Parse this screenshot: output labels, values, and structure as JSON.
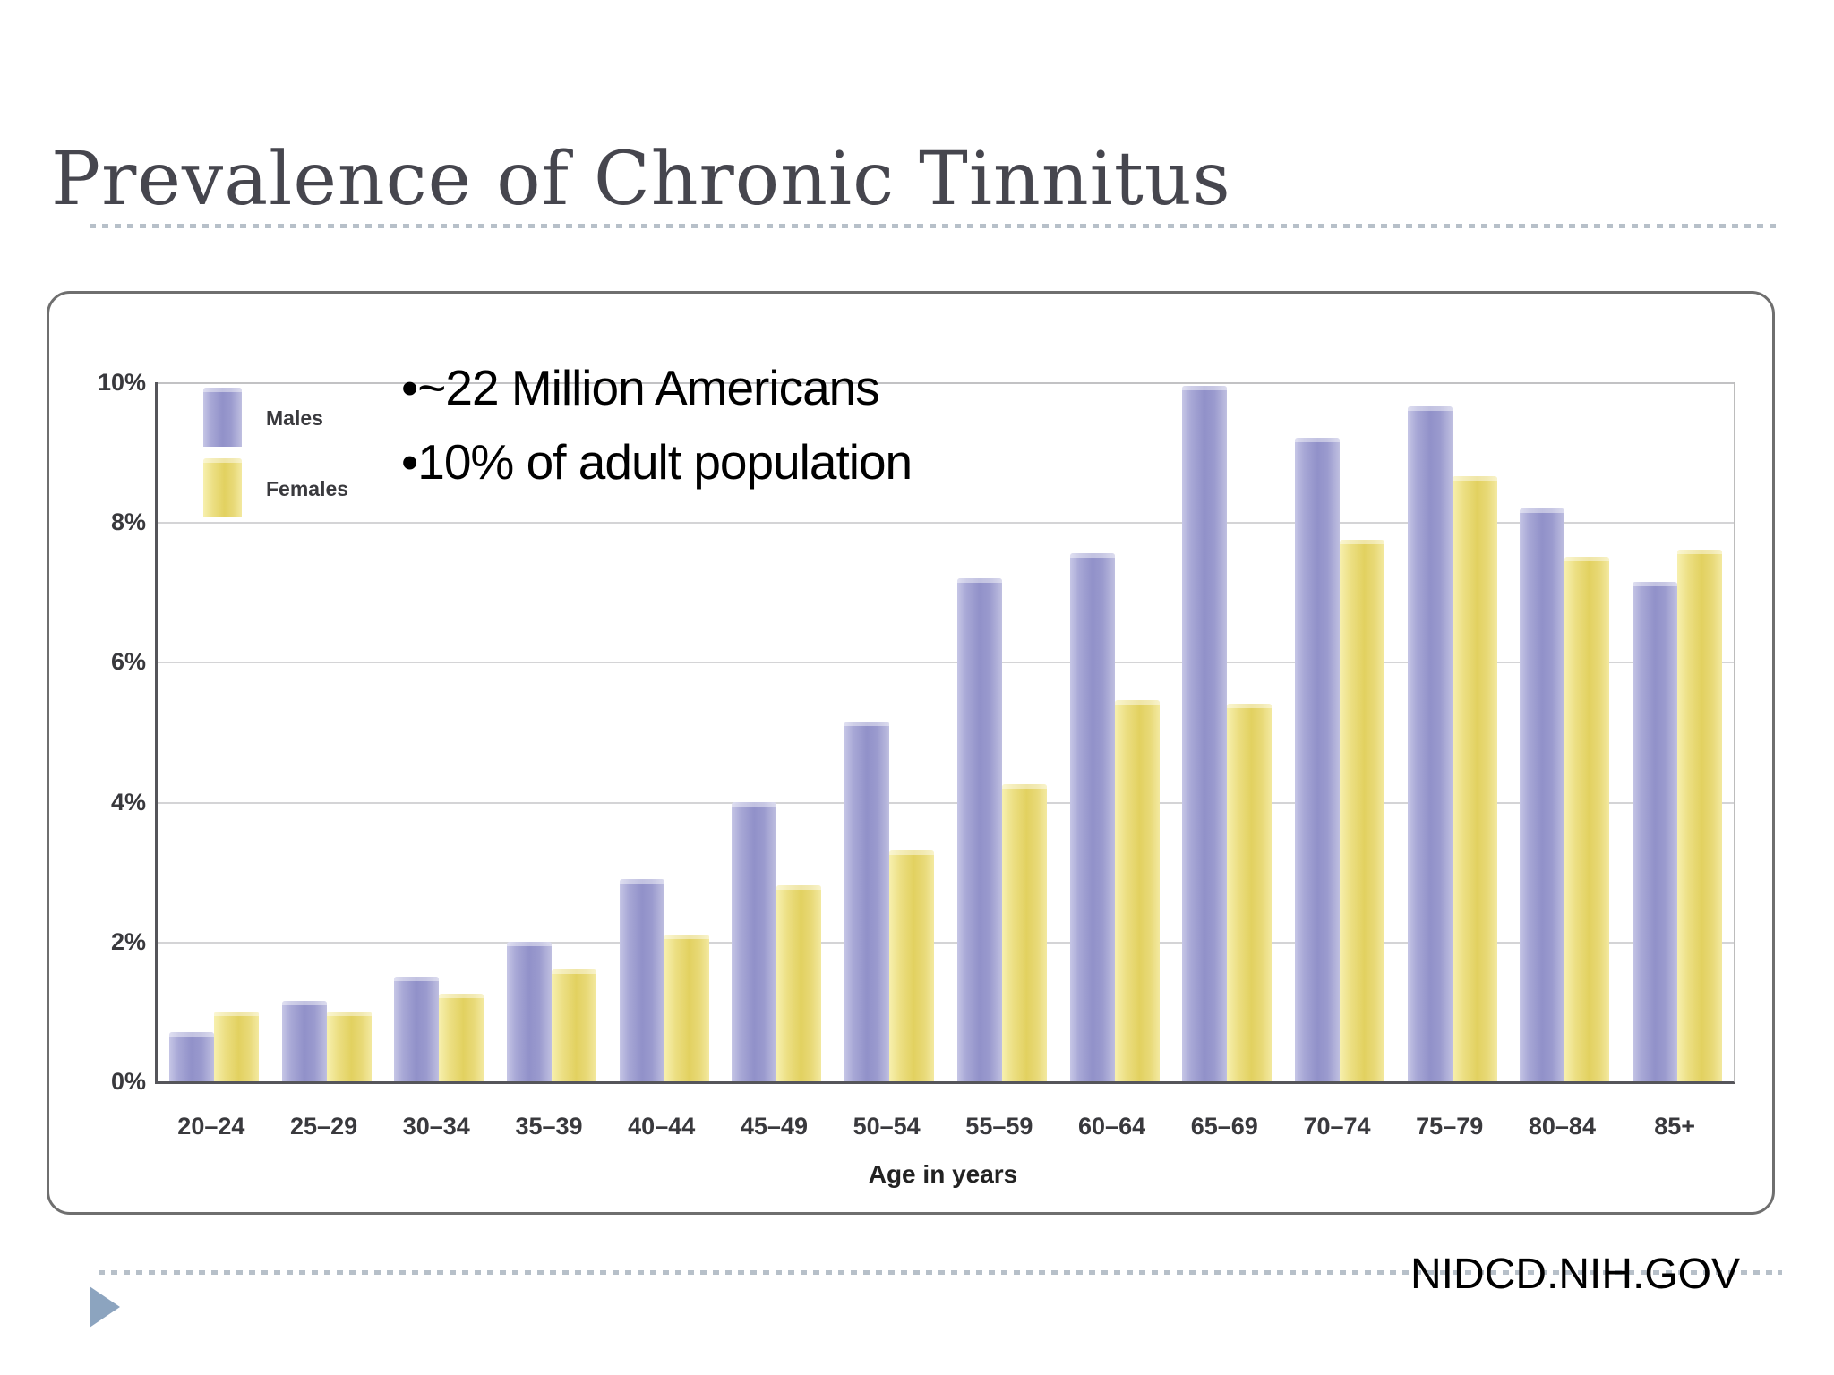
{
  "slide": {
    "title": "Prevalence of Chronic Tinnitus",
    "bullets": [
      "•~22 Million Americans",
      "•10% of adult population"
    ],
    "source": "NIDCD.NIH.GOV"
  },
  "colors": {
    "males_bar": "#9a9ace",
    "females_bar": "#e6d66e",
    "dashed_rule": "#b7c0c9",
    "corner_triangle": "#8ca4bf",
    "title_text": "#46464e"
  },
  "chart_data": {
    "type": "bar",
    "title": "",
    "xlabel": "Age in years",
    "ylabel": "",
    "ylim": [
      0,
      10
    ],
    "yticks": [
      10,
      8,
      6,
      4,
      2,
      0
    ],
    "ytick_suffix": "%",
    "grid": true,
    "legend_position": "top-left",
    "categories": [
      "20–24",
      "25–29",
      "30–34",
      "35–39",
      "40–44",
      "45–49",
      "50–54",
      "55–59",
      "60–64",
      "65–69",
      "70–74",
      "75–79",
      "80–84",
      "85+"
    ],
    "series": [
      {
        "name": "Males",
        "values": [
          0.7,
          1.15,
          1.5,
          2.0,
          2.9,
          4.0,
          5.15,
          7.2,
          7.55,
          9.95,
          9.2,
          9.65,
          8.2,
          7.15
        ]
      },
      {
        "name": "Females",
        "values": [
          1.0,
          1.0,
          1.25,
          1.6,
          2.1,
          2.8,
          3.3,
          4.25,
          5.45,
          5.4,
          7.75,
          8.65,
          7.5,
          7.6
        ]
      }
    ]
  }
}
